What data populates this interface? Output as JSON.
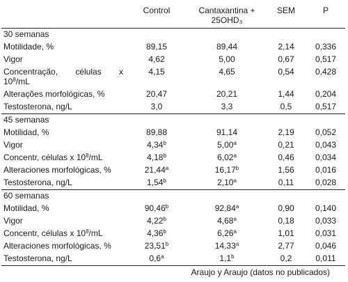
{
  "header": {
    "col_label": "",
    "control": "Control",
    "cantax_line1": "Cantaxantina +",
    "cantax_line2": "25OHD₃",
    "sem": "SEM",
    "p": "P"
  },
  "sections": [
    {
      "title": "30 semanas",
      "rows": [
        {
          "label": "Motilidade, %",
          "control": "89,15",
          "control_sup": "",
          "cantax": "89,44",
          "cantax_sup": "",
          "sem": "2,14",
          "p": "0,336"
        },
        {
          "label": "Vigor",
          "control": "4,62",
          "control_sup": "",
          "cantax": "5,00",
          "cantax_sup": "",
          "sem": "0,67",
          "p": "0,517"
        },
        {
          "label_a": "Concentração,",
          "label_b": "células",
          "label_c": "x",
          "label_d": "10",
          "label_d_sup": "8",
          "label_e": "/mL",
          "control": "4,15",
          "control_sup": "",
          "cantax": "4,65",
          "cantax_sup": "",
          "sem": "0,54",
          "p": "0,428"
        },
        {
          "label": "Alterações morfológicas, %",
          "control": "20,47",
          "control_sup": "",
          "cantax": "20,21",
          "cantax_sup": "",
          "sem": "1,44",
          "p": "0,204"
        },
        {
          "label": "Testosterona, ng/L",
          "control": "3,0",
          "control_sup": "",
          "cantax": "3,3",
          "cantax_sup": "",
          "sem": "0,5",
          "p": "0,517"
        }
      ]
    },
    {
      "title": "45 semanas",
      "rows": [
        {
          "label": "Motilidad, %",
          "control": "89,88",
          "control_sup": "",
          "cantax": "91,14",
          "cantax_sup": "",
          "sem": "2,19",
          "p": "0,052"
        },
        {
          "label": "Vigor",
          "control": "4,34",
          "control_sup": "b",
          "cantax": "5,00",
          "cantax_sup": "a",
          "sem": "0,21",
          "p": "0,043"
        },
        {
          "label_pre": "Concentr, células x 10",
          "label_sup": "8",
          "label_post": "/mL",
          "control": "4,18",
          "control_sup": "b",
          "cantax": "6,02",
          "cantax_sup": "a",
          "sem": "0,46",
          "p": "0,034"
        },
        {
          "label": "Alteraciones morfológicas, %",
          "control": "21,44",
          "control_sup": "a",
          "cantax": "16,17",
          "cantax_sup": "b",
          "sem": "1,56",
          "p": "0,016"
        },
        {
          "label": "Testosterona, ng/L",
          "control": "1,54",
          "control_sup": "b",
          "cantax": "2,10",
          "cantax_sup": "a",
          "sem": "0,11",
          "p": "0,028"
        }
      ]
    },
    {
      "title": "60 semanas",
      "rows": [
        {
          "label": "Motilidad, %",
          "control": "90,46",
          "control_sup": "b",
          "cantax": "92,84",
          "cantax_sup": "a",
          "sem": "0,90",
          "p": "0,140"
        },
        {
          "label": "Vigor",
          "control": "4,22",
          "control_sup": "b",
          "cantax": "4,68",
          "cantax_sup": "a",
          "sem": "0,18",
          "p": "0,033"
        },
        {
          "label_pre": "Concentr, células x 10",
          "label_sup": "8",
          "label_post": "/mL",
          "control": "4,36",
          "control_sup": "b",
          "cantax": "6,26",
          "cantax_sup": "a",
          "sem": "1,01",
          "p": "0,031"
        },
        {
          "label": "Alteraciones morfológicas, %",
          "control": "23,51",
          "control_sup": "b",
          "cantax": "14,33",
          "cantax_sup": "a",
          "sem": "2,77",
          "p": "0,046"
        },
        {
          "label": "Testosterona, ng/L",
          "control": "0,6",
          "control_sup": "a",
          "cantax": "1,1",
          "cantax_sup": "b",
          "sem": "0,2",
          "p": "0,011"
        }
      ]
    }
  ],
  "source": "Araujo y Araujo (datos no publicados)"
}
